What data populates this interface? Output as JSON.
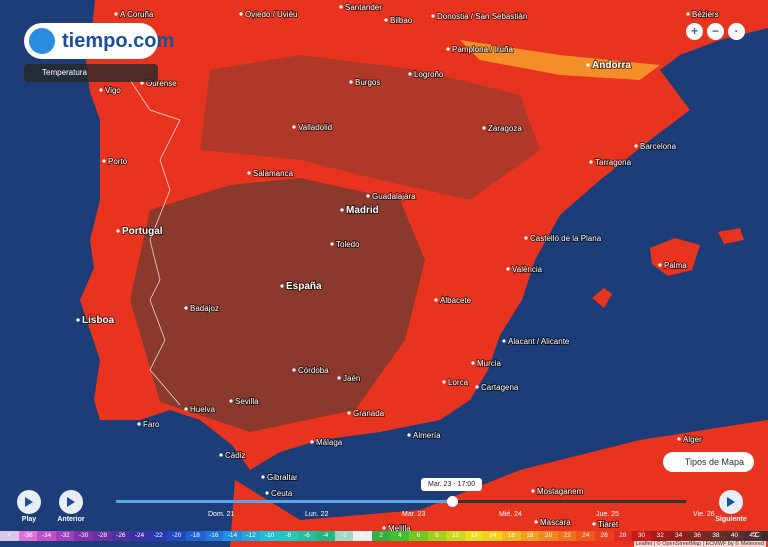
{
  "logo": "tiempo.com",
  "layer": "Temperatura",
  "map_type_button": "Tipos de Mapa",
  "places": [
    {
      "name": "A Coruña"
    },
    {
      "name": "Oviedo / Uviéu"
    },
    {
      "name": "Santander"
    },
    {
      "name": "Bilbao"
    },
    {
      "name": "Donostia / San Sebastián"
    },
    {
      "name": "Béziers"
    },
    {
      "name": "Pamplona / Iruña"
    },
    {
      "name": "Ourense"
    },
    {
      "name": "Vigo"
    },
    {
      "name": "Burgos"
    },
    {
      "name": "Logroño"
    },
    {
      "name": "Andorra"
    },
    {
      "name": "Valladolid"
    },
    {
      "name": "Zaragoza"
    },
    {
      "name": "Porto"
    },
    {
      "name": "Salamanca"
    },
    {
      "name": "Tarragona"
    },
    {
      "name": "Barcelona"
    },
    {
      "name": "Guadalajara"
    },
    {
      "name": "Madrid"
    },
    {
      "name": "Toledo"
    },
    {
      "name": "Portugal"
    },
    {
      "name": "Castelló de la Plana"
    },
    {
      "name": "València"
    },
    {
      "name": "Palma"
    },
    {
      "name": "España"
    },
    {
      "name": "Badajoz"
    },
    {
      "name": "Albacete"
    },
    {
      "name": "Lisboa"
    },
    {
      "name": "Alacant / Alicante"
    },
    {
      "name": "Murcia"
    },
    {
      "name": "Córdoba"
    },
    {
      "name": "Jaén"
    },
    {
      "name": "Lorca"
    },
    {
      "name": "Cartagena"
    },
    {
      "name": "Sevilla"
    },
    {
      "name": "Huelva"
    },
    {
      "name": "Faro"
    },
    {
      "name": "Granada"
    },
    {
      "name": "Málaga"
    },
    {
      "name": "Almería"
    },
    {
      "name": "Cádiz"
    },
    {
      "name": "Gibraltar"
    },
    {
      "name": "Ceuta"
    },
    {
      "name": "Alger"
    },
    {
      "name": "Melilla"
    },
    {
      "name": "Mostaganem"
    },
    {
      "name": "Mascara"
    },
    {
      "name": "Tiaret"
    }
  ],
  "timeline": {
    "current": "Mar. 23 - 17:00",
    "days": [
      "Dom. 21",
      "Lun. 22",
      "Mar. 23",
      "Mié. 24",
      "Jue. 25",
      "Vie. 26"
    ],
    "play": "Play",
    "previous": "Anterior",
    "next": "Siguiente"
  },
  "legend": {
    "unit": "°C",
    "items": [
      {
        "label": "<",
        "color": "#d9c8e8"
      },
      {
        "label": "-36",
        "color": "#e070d8"
      },
      {
        "label": "-34",
        "color": "#c050c8"
      },
      {
        "label": "-32",
        "color": "#a040b8"
      },
      {
        "label": "-30",
        "color": "#8030a8"
      },
      {
        "label": "-28",
        "color": "#6830a0"
      },
      {
        "label": "-26",
        "color": "#5030a0"
      },
      {
        "label": "-24",
        "color": "#3a30a8"
      },
      {
        "label": "-22",
        "color": "#2a38b0"
      },
      {
        "label": "-20",
        "color": "#2048c0"
      },
      {
        "label": "-18",
        "color": "#2060d0"
      },
      {
        "label": "-16",
        "color": "#2078d8"
      },
      {
        "label": "-14",
        "color": "#2090e0"
      },
      {
        "label": "-12",
        "color": "#20a8e0"
      },
      {
        "label": "-10",
        "color": "#20c0d8"
      },
      {
        "label": "-8",
        "color": "#20c8c0"
      },
      {
        "label": "-6",
        "color": "#20c0a0"
      },
      {
        "label": "-4",
        "color": "#20b880"
      },
      {
        "label": "-2",
        "color": "#a0d8c8"
      },
      {
        "label": "0",
        "color": "#e8f0f0"
      },
      {
        "label": "2",
        "color": "#30b040"
      },
      {
        "label": "4",
        "color": "#40c030"
      },
      {
        "label": "6",
        "color": "#70c820"
      },
      {
        "label": "8",
        "color": "#a0d020"
      },
      {
        "label": "10",
        "color": "#c8d820"
      },
      {
        "label": "12",
        "color": "#e8e020"
      },
      {
        "label": "14",
        "color": "#f0d020"
      },
      {
        "label": "16",
        "color": "#f0b820"
      },
      {
        "label": "18",
        "color": "#f0a020"
      },
      {
        "label": "20",
        "color": "#f08820"
      },
      {
        "label": "22",
        "color": "#f07020"
      },
      {
        "label": "24",
        "color": "#f05820"
      },
      {
        "label": "26",
        "color": "#e84020"
      },
      {
        "label": "28",
        "color": "#e02820"
      },
      {
        "label": "30",
        "color": "#c81818"
      },
      {
        "label": "32",
        "color": "#a81818"
      },
      {
        "label": "34",
        "color": "#902020"
      },
      {
        "label": "36",
        "color": "#7a2820"
      },
      {
        "label": "38",
        "color": "#683028"
      },
      {
        "label": "40",
        "color": "#583030"
      },
      {
        "label": "42",
        "color": "#4a3030"
      },
      {
        "label": ">",
        "color": "#3a2a2a"
      }
    ]
  },
  "attribution": "Leaflet | © OpenStreetMap | ECMWF by © Meteored"
}
